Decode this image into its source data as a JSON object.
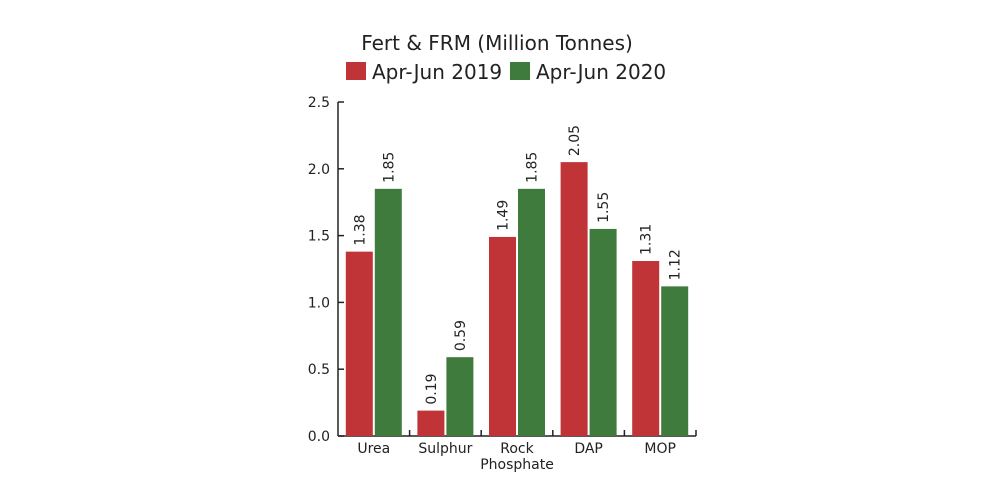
{
  "chart_data": {
    "type": "bar",
    "title": "Fert & FRM (Million Tonnes)",
    "xlabel": "",
    "ylabel": "",
    "categories": [
      "Urea",
      "Sulphur",
      "Rock Phosphate",
      "DAP",
      "MOP"
    ],
    "series": [
      {
        "name": "Apr-Jun 2019",
        "values": [
          1.38,
          0.19,
          1.49,
          2.05,
          1.31
        ],
        "color": "#c03337"
      },
      {
        "name": "Apr-Jun 2020",
        "values": [
          1.85,
          0.59,
          1.85,
          1.55,
          1.12
        ],
        "color": "#3e7b3c"
      }
    ],
    "ylim": [
      0,
      2.5
    ],
    "yticks": [
      "0.0",
      "0.5",
      "1.0",
      "1.5",
      "2.0",
      "2.5"
    ],
    "data_labels": [
      [
        "1.38",
        "0.19",
        "1.49",
        "2.05",
        "1.31"
      ],
      [
        "1.85",
        "0.59",
        "1.85",
        "1.55",
        "1.12"
      ]
    ],
    "grid": false,
    "legend_position": "top"
  }
}
